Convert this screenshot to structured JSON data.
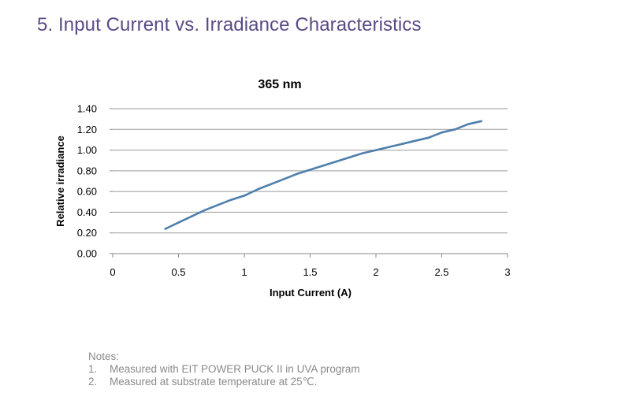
{
  "page": {
    "heading": "5. Input Current vs. Irradiance Characteristics"
  },
  "chart_data": {
    "type": "line",
    "title": "365 nm",
    "xlabel": "Input Current (A)",
    "ylabel": "Relative irradiance",
    "xlim": [
      0,
      3
    ],
    "ylim": [
      0,
      1.4
    ],
    "x_ticks": [
      "0",
      "0.5",
      "1",
      "1.5",
      "2",
      "2.5",
      "3"
    ],
    "y_ticks": [
      "0.00",
      "0.20",
      "0.40",
      "0.60",
      "0.80",
      "1.00",
      "1.20",
      "1.40"
    ],
    "grid": "horizontal",
    "legend": "none",
    "series": [
      {
        "color": "#4f7fac",
        "x": [
          0.4,
          0.5,
          0.6,
          0.7,
          0.8,
          0.9,
          1.0,
          1.1,
          1.2,
          1.3,
          1.4,
          1.5,
          1.6,
          1.7,
          1.8,
          1.9,
          2.0,
          2.1,
          2.2,
          2.3,
          2.4,
          2.5,
          2.6,
          2.7,
          2.8
        ],
        "values": [
          0.24,
          0.3,
          0.36,
          0.42,
          0.47,
          0.52,
          0.56,
          0.62,
          0.67,
          0.72,
          0.77,
          0.81,
          0.85,
          0.89,
          0.93,
          0.97,
          1.0,
          1.03,
          1.06,
          1.09,
          1.12,
          1.17,
          1.2,
          1.25,
          1.28
        ]
      }
    ]
  },
  "notes": {
    "header": "Notes:",
    "items": [
      {
        "num": "1.",
        "text": "Measured with EIT POWER PUCK II in UVA program"
      },
      {
        "num": "2.",
        "text": "Measured at substrate temperature at 25℃."
      }
    ]
  }
}
